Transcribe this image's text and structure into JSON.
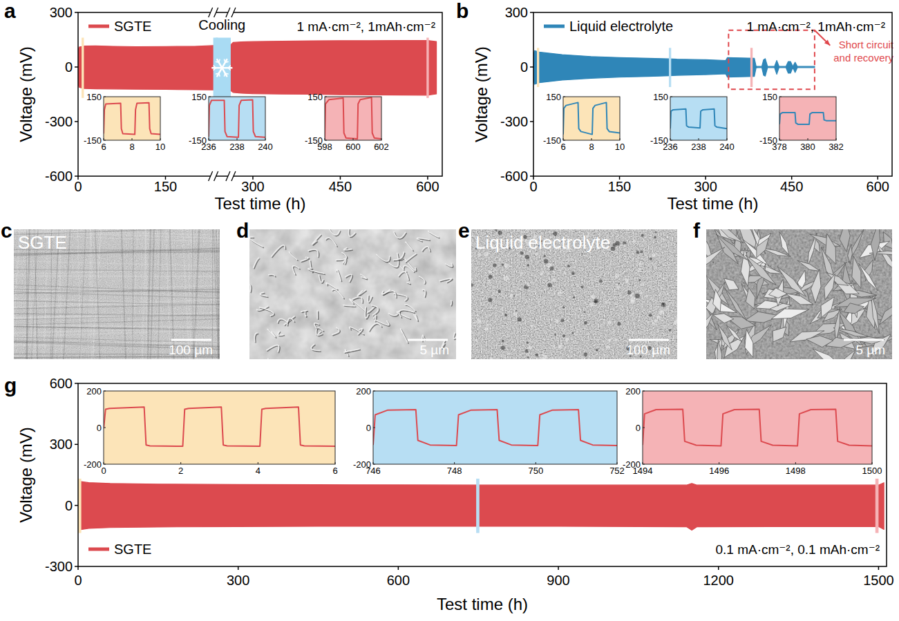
{
  "chart_data": [
    {
      "panel": "a",
      "type": "area",
      "x_label": "Test time (h)",
      "y_label": "Voltage (mV)",
      "condition": "1 mA·cm⁻², 1mAh·cm⁻²",
      "legend": "upper left",
      "xlim": [
        0,
        625
      ],
      "xticks": [
        0,
        150,
        300,
        450,
        600
      ],
      "ylim": [
        -600,
        300
      ],
      "yticks": [
        -600,
        -300,
        0,
        300
      ],
      "series": [
        {
          "name": "SGTE",
          "color": "#dc4a4f",
          "x": [
            0,
            2,
            10,
            30,
            60,
            100,
            150,
            200,
            232,
            262,
            266,
            280,
            300,
            350,
            400,
            450,
            500,
            550,
            600,
            615
          ],
          "values": [
            95,
            110,
            115,
            116,
            114,
            112,
            113,
            114,
            118,
            122,
            135,
            138,
            140,
            142,
            144,
            145,
            145,
            146,
            146,
            140
          ],
          "lower": [
            -95,
            -112,
            -118,
            -120,
            -121,
            -122,
            -123,
            -125,
            -126,
            -130,
            -140,
            -144,
            -147,
            -149,
            -150,
            -152,
            -153,
            -154,
            -155,
            -148
          ]
        }
      ],
      "regions": [
        {
          "text": "Cooling",
          "range": [
            232,
            262
          ],
          "color": "#a9dbf3"
        }
      ],
      "insets": [
        {
          "color": "#fce4b8",
          "xlim": [
            6,
            10
          ],
          "xticks": [
            6,
            8,
            10
          ],
          "ylim": [
            -150,
            150
          ],
          "yticks": [
            -150,
            150
          ],
          "x": [
            6,
            6.05,
            6.15,
            7.2,
            7.25,
            7.35,
            8.2,
            8.25,
            8.35,
            9.2,
            9.25,
            9.35,
            10
          ],
          "values": [
            -105,
            60,
            100,
            105,
            -70,
            -105,
            -110,
            60,
            105,
            108,
            -70,
            -105,
            -110
          ]
        },
        {
          "color": "#b7def3",
          "xlim": [
            236,
            240
          ],
          "xticks": [
            236,
            238,
            240
          ],
          "ylim": [
            -150,
            150
          ],
          "yticks": [
            -150,
            150
          ],
          "x": [
            236,
            236.05,
            236.2,
            237.1,
            237.15,
            237.3,
            238.1,
            238.15,
            238.3,
            239.1,
            239.15,
            239.3,
            240
          ],
          "values": [
            -125,
            90,
            125,
            125,
            -90,
            -125,
            -130,
            90,
            125,
            128,
            -90,
            -125,
            -130
          ]
        },
        {
          "color": "#f5b3b6",
          "xlim": [
            598,
            602
          ],
          "xticks": [
            598,
            600,
            602
          ],
          "ylim": [
            -150,
            150
          ],
          "yticks": [
            -150,
            150
          ],
          "x": [
            598,
            598.05,
            598.3,
            599.3,
            599.35,
            599.5,
            600.3,
            600.35,
            600.5,
            601.3,
            601.35,
            601.5,
            602
          ],
          "values": [
            -140,
            100,
            130,
            140,
            -100,
            -135,
            -140,
            100,
            130,
            145,
            -100,
            -135,
            -140
          ]
        }
      ]
    },
    {
      "panel": "b",
      "type": "area",
      "x_label": "Test time (h)",
      "y_label": "Voltage (mV)",
      "condition": "1 mA·cm⁻², 1mAh·cm⁻²",
      "legend": "upper left",
      "xlim": [
        0,
        625
      ],
      "xticks": [
        0,
        150,
        300,
        450,
        600
      ],
      "ylim": [
        -600,
        300
      ],
      "yticks": [
        -600,
        -300,
        0,
        300
      ],
      "series": [
        {
          "name": "Liquid electrolyte",
          "color": "#2f86b8",
          "x": [
            0,
            2,
            10,
            50,
            100,
            150,
            200,
            236,
            250,
            300,
            335,
            338,
            360,
            385,
            388,
            392,
            398,
            401,
            404,
            408,
            412,
            420,
            424,
            428,
            434,
            440,
            444,
            448,
            452,
            456,
            460,
            464,
            490
          ],
          "values": [
            75,
            90,
            82,
            68,
            58,
            52,
            48,
            45,
            43,
            40,
            36,
            52,
            50,
            48,
            4,
            3,
            3,
            40,
            46,
            3,
            3,
            3,
            36,
            3,
            3,
            3,
            30,
            30,
            3,
            26,
            3,
            3,
            3
          ],
          "lower": [
            -78,
            -95,
            -86,
            -72,
            -62,
            -56,
            -52,
            -48,
            -46,
            -42,
            -38,
            -56,
            -54,
            -52,
            -4,
            -3,
            -3,
            -45,
            -50,
            -3,
            -3,
            -3,
            -40,
            -3,
            -3,
            -3,
            -34,
            -34,
            -3,
            -30,
            -3,
            -3,
            -3
          ]
        }
      ],
      "regions": [
        {
          "text": "Short circuit and recovery",
          "range": [
            340,
            490
          ],
          "color": "#e0474c",
          "line_style": "dashed"
        }
      ],
      "insets": [
        {
          "color": "#fce4b8",
          "xlim": [
            6,
            10
          ],
          "xticks": [
            6,
            8,
            10
          ],
          "ylim": [
            -150,
            150
          ],
          "yticks": [
            -150,
            150
          ],
          "x": [
            6,
            6.05,
            6.2,
            7.05,
            7.1,
            7.25,
            8.05,
            8.1,
            8.25,
            9.05,
            9.1,
            9.25,
            10
          ],
          "values": [
            -110,
            70,
            90,
            110,
            -70,
            -90,
            -110,
            70,
            90,
            110,
            -70,
            -90,
            -100
          ]
        },
        {
          "color": "#b7def3",
          "xlim": [
            236,
            240
          ],
          "xticks": [
            236,
            238,
            240
          ],
          "ylim": [
            -150,
            150
          ],
          "yticks": [
            -150,
            150
          ],
          "x": [
            236,
            236.05,
            236.2,
            237.1,
            237.15,
            237.3,
            238.1,
            238.15,
            238.3,
            239.1,
            239.15,
            239.3,
            240
          ],
          "values": [
            -70,
            50,
            60,
            65,
            -50,
            -60,
            -65,
            50,
            60,
            65,
            -50,
            -60,
            -70
          ]
        },
        {
          "color": "#f5b3b6",
          "xlim": [
            378,
            382
          ],
          "xticks": [
            378,
            380,
            382
          ],
          "ylim": [
            -150,
            150
          ],
          "yticks": [
            -150,
            150
          ],
          "x": [
            378,
            378.05,
            378.2,
            379.1,
            379.15,
            379.3,
            380.1,
            380.15,
            380.3,
            381.1,
            381.15,
            381.3,
            382
          ],
          "values": [
            -40,
            30,
            40,
            40,
            -30,
            -40,
            -40,
            30,
            40,
            40,
            -10,
            -15,
            -15
          ]
        }
      ]
    },
    {
      "panel": "g",
      "type": "area",
      "x_label": "Test time (h)",
      "y_label": "Voltage (mV)",
      "condition": "0.1 mA·cm⁻², 0.1 mAh·cm⁻²",
      "legend": "lower left",
      "xlim": [
        0,
        1515
      ],
      "xticks": [
        0,
        300,
        600,
        900,
        1200,
        1500
      ],
      "ylim": [
        -300,
        600
      ],
      "yticks": [
        -300,
        0,
        300,
        600
      ],
      "series": [
        {
          "name": "SGTE",
          "color": "#dc4a4f",
          "x": [
            0,
            3,
            20,
            60,
            150,
            300,
            450,
            600,
            750,
            900,
            1050,
            1140,
            1150,
            1160,
            1300,
            1450,
            1500,
            1510
          ],
          "values": [
            108,
            118,
            112,
            108,
            105,
            103,
            102,
            101,
            100,
            100,
            100,
            100,
            108,
            100,
            100,
            100,
            100,
            112
          ],
          "lower": [
            -108,
            -120,
            -113,
            -109,
            -106,
            -104,
            -103,
            -103,
            -103,
            -103,
            -104,
            -105,
            -122,
            -105,
            -104,
            -104,
            -104,
            -118
          ]
        }
      ],
      "regions": [],
      "insets": [
        {
          "color": "#fce4b8",
          "xlim": [
            0,
            6
          ],
          "xticks": [
            0,
            2,
            4,
            6
          ],
          "ylim": [
            -200,
            200
          ],
          "yticks": [
            -200,
            0,
            200
          ],
          "x": [
            0,
            0.05,
            0.15,
            1.05,
            1.1,
            1.2,
            2.05,
            2.1,
            2.2,
            3.05,
            3.1,
            3.2,
            4.05,
            4.1,
            4.2,
            5.05,
            5.1,
            5.2,
            6
          ],
          "values": [
            -5,
            100,
            105,
            112,
            -95,
            -100,
            -102,
            100,
            105,
            112,
            -95,
            -100,
            -102,
            100,
            105,
            112,
            -95,
            -100,
            -102
          ]
        },
        {
          "color": "#b7def3",
          "xlim": [
            746,
            752
          ],
          "xticks": [
            746,
            748,
            750,
            752
          ],
          "ylim": [
            -200,
            200
          ],
          "yticks": [
            -200,
            0,
            200
          ],
          "x": [
            746,
            746.05,
            746.35,
            747.05,
            747.1,
            747.4,
            748.05,
            748.1,
            748.4,
            749.05,
            749.1,
            749.4,
            750.05,
            750.1,
            750.4,
            751.05,
            751.1,
            751.4,
            752
          ],
          "values": [
            -95,
            70,
            95,
            98,
            -70,
            -95,
            -98,
            70,
            95,
            98,
            -70,
            -95,
            -98,
            70,
            95,
            98,
            -70,
            -95,
            -98
          ]
        },
        {
          "color": "#f5b3b6",
          "xlim": [
            1494,
            1500
          ],
          "xticks": [
            1494,
            1496,
            1498,
            1500
          ],
          "ylim": [
            -200,
            200
          ],
          "yticks": [
            -200,
            0,
            200
          ],
          "x": [
            1494,
            1494.05,
            1494.35,
            1495.05,
            1495.1,
            1495.4,
            1496.05,
            1496.1,
            1496.4,
            1497.05,
            1497.1,
            1497.4,
            1498.05,
            1498.1,
            1498.4,
            1499.05,
            1499.1,
            1499.4,
            1500
          ],
          "values": [
            -95,
            75,
            98,
            100,
            -75,
            -96,
            -100,
            75,
            98,
            100,
            -75,
            -96,
            -100,
            75,
            98,
            100,
            -75,
            -96,
            -100
          ]
        }
      ]
    }
  ],
  "images": [
    {
      "panel": "c",
      "label": "SGTE",
      "scale_bar": "100 µm"
    },
    {
      "panel": "d",
      "scale_bar": "5 µm"
    },
    {
      "panel": "e",
      "label": "Liquid electrolyte",
      "scale_bar": "100 µm"
    },
    {
      "panel": "f",
      "scale_bar": "5 µm"
    }
  ]
}
